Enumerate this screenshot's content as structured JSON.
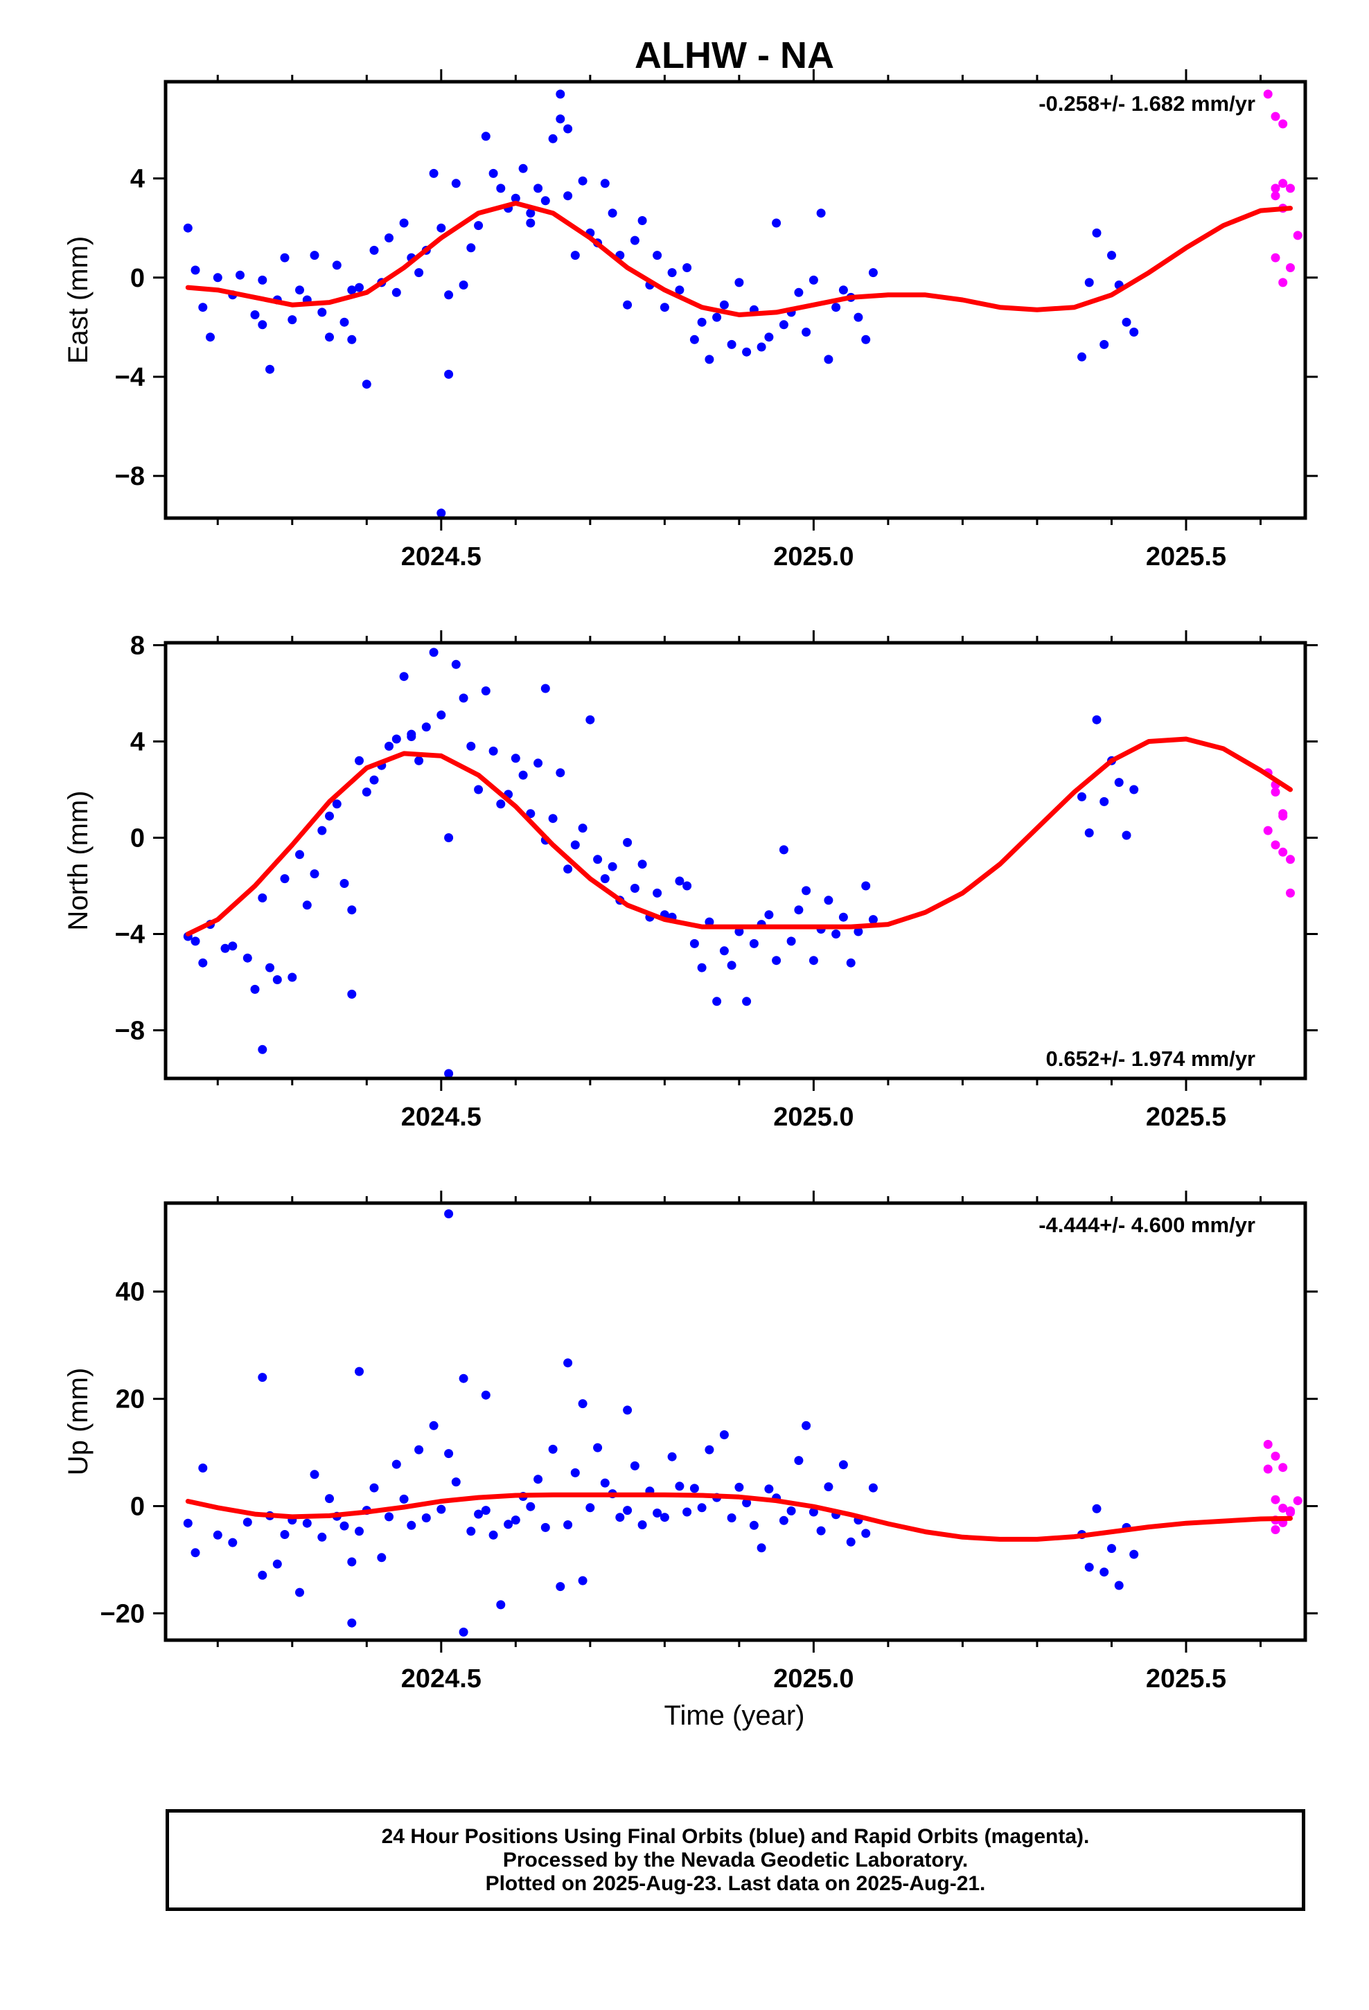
{
  "title": "ALHW - NA",
  "xlabel": "Time (year)",
  "colors": {
    "final": "#0000ff",
    "rapid": "#ff00ff",
    "model": "#ff0000",
    "axis": "#000000"
  },
  "caption": [
    "24 Hour Positions Using Final Orbits (blue) and Rapid Orbits (magenta).",
    "Processed by the Nevada Geodetic Laboratory.",
    "Plotted on 2025-Aug-23. Last data on 2025-Aug-21."
  ],
  "chart_data": [
    {
      "type": "scatter",
      "ylabel": "East (mm)",
      "rate_label": "-0.258+/- 1.682 mm/yr",
      "rate_position": "top-right",
      "xlim": [
        2024.13,
        2025.66
      ],
      "ylim": [
        -9.7,
        7.9
      ],
      "xticks": [
        2024.5,
        2025.0,
        2025.5
      ],
      "xtick_labels": [
        "2024.5",
        "2025.0",
        "2025.5"
      ],
      "yticks": [
        4,
        0,
        -4,
        -8
      ],
      "ytick_labels": [
        "4",
        "0",
        "−4",
        "−8"
      ],
      "series": [
        {
          "kind": "final",
          "x": [
            2024.16,
            2024.17,
            2024.18,
            2024.19,
            2024.2,
            2024.22,
            2024.23,
            2024.25,
            2024.26,
            2024.27,
            2024.28,
            2024.29,
            2024.3,
            2024.31,
            2024.32,
            2024.33,
            2024.34,
            2024.35,
            2024.36,
            2024.37,
            2024.38,
            2024.39,
            2024.4,
            2024.41,
            2024.42,
            2024.43,
            2024.44,
            2024.45,
            2024.46,
            2024.47,
            2024.48,
            2024.49,
            2024.5,
            2024.51,
            2024.52,
            2024.53,
            2024.54,
            2024.55,
            2024.56,
            2024.57,
            2024.58,
            2024.59,
            2024.6,
            2024.61,
            2024.62,
            2024.63,
            2024.64,
            2024.65,
            2024.66,
            2024.67,
            2024.68,
            2024.69,
            2024.7,
            2024.71,
            2024.72,
            2024.73,
            2024.74,
            2024.75,
            2024.76,
            2024.77,
            2024.78,
            2024.79,
            2024.8,
            2024.81,
            2024.82,
            2024.83,
            2024.84,
            2024.85,
            2024.86,
            2024.87,
            2024.88,
            2024.89,
            2024.9,
            2024.91,
            2024.92,
            2024.93,
            2024.94,
            2024.95,
            2024.96,
            2024.97,
            2024.98,
            2024.99,
            2025.0,
            2025.01,
            2025.02,
            2025.03,
            2025.04,
            2025.05,
            2025.06,
            2025.07,
            2025.08,
            2025.36,
            2025.37,
            2025.38,
            2025.39,
            2025.4,
            2025.41,
            2025.42,
            2025.43,
            2024.26,
            2024.38,
            2024.5,
            2024.51,
            2024.66,
            2024.67,
            2024.62
          ],
          "y": [
            2.0,
            0.3,
            -1.2,
            -2.4,
            0.0,
            -0.7,
            0.1,
            -1.5,
            -1.9,
            -3.7,
            -0.9,
            0.8,
            -1.7,
            -0.5,
            -0.9,
            0.9,
            -1.4,
            -2.4,
            0.5,
            -1.8,
            -2.5,
            -0.4,
            -4.3,
            1.1,
            -0.2,
            1.6,
            -0.6,
            2.2,
            0.8,
            0.2,
            1.1,
            4.2,
            2.0,
            -3.9,
            3.8,
            -0.3,
            1.2,
            2.1,
            5.7,
            4.2,
            3.6,
            2.8,
            3.2,
            4.4,
            2.2,
            3.6,
            3.1,
            5.6,
            6.4,
            3.3,
            0.9,
            3.9,
            1.8,
            1.4,
            3.8,
            2.6,
            0.9,
            -1.1,
            1.5,
            2.3,
            -0.3,
            0.9,
            -1.2,
            0.2,
            -0.5,
            0.4,
            -2.5,
            -1.8,
            -3.3,
            -1.6,
            -1.1,
            -2.7,
            -0.2,
            -3.0,
            -1.3,
            -2.8,
            -2.4,
            2.2,
            -1.9,
            -1.4,
            -0.6,
            -2.2,
            -0.1,
            2.6,
            -3.3,
            -1.2,
            -0.5,
            -0.8,
            -1.6,
            -2.5,
            0.2,
            -3.2,
            -0.2,
            1.8,
            -2.7,
            0.9,
            -0.3,
            -1.8,
            -2.2,
            -0.1,
            -0.5,
            -9.5,
            -0.7,
            7.4,
            6.0,
            2.6
          ],
          "color": "#0000ff"
        },
        {
          "kind": "rapid",
          "x": [
            2025.61,
            2025.62,
            2025.63,
            2025.63,
            2025.64,
            2025.62,
            2025.63,
            2025.65,
            2025.62,
            2025.64,
            2025.63,
            2025.62
          ],
          "y": [
            7.4,
            6.5,
            6.2,
            3.8,
            3.6,
            3.3,
            2.8,
            1.7,
            0.8,
            0.4,
            -0.2,
            3.6
          ],
          "color": "#ff00ff"
        }
      ],
      "model": {
        "x": [
          2024.16,
          2024.2,
          2024.25,
          2024.3,
          2024.35,
          2024.4,
          2024.45,
          2024.5,
          2024.55,
          2024.6,
          2024.65,
          2024.7,
          2024.75,
          2024.8,
          2024.85,
          2024.9,
          2024.95,
          2025.0,
          2025.05,
          2025.1,
          2025.15,
          2025.2,
          2025.25,
          2025.3,
          2025.35,
          2025.4,
          2025.45,
          2025.5,
          2025.55,
          2025.6,
          2025.64
        ],
        "y": [
          -0.4,
          -0.5,
          -0.8,
          -1.1,
          -1.0,
          -0.6,
          0.4,
          1.6,
          2.6,
          3.0,
          2.6,
          1.6,
          0.4,
          -0.5,
          -1.2,
          -1.5,
          -1.4,
          -1.1,
          -0.8,
          -0.7,
          -0.7,
          -0.9,
          -1.2,
          -1.3,
          -1.2,
          -0.7,
          0.2,
          1.2,
          2.1,
          2.7,
          2.8
        ]
      }
    },
    {
      "type": "scatter",
      "ylabel": "North (mm)",
      "rate_label": "0.652+/- 1.974 mm/yr",
      "rate_position": "bottom-right",
      "xlim": [
        2024.13,
        2025.66
      ],
      "ylim": [
        -10.0,
        8.1
      ],
      "xticks": [
        2024.5,
        2025.0,
        2025.5
      ],
      "xtick_labels": [
        "2024.5",
        "2025.0",
        "2025.5"
      ],
      "yticks": [
        8,
        4,
        0,
        -4,
        -8
      ],
      "ytick_labels": [
        "8",
        "4",
        "0",
        "−4",
        "−8"
      ],
      "series": [
        {
          "kind": "final",
          "x": [
            2024.16,
            2024.17,
            2024.18,
            2024.19,
            2024.21,
            2024.22,
            2024.24,
            2024.25,
            2024.26,
            2024.27,
            2024.28,
            2024.29,
            2024.3,
            2024.31,
            2024.32,
            2024.33,
            2024.34,
            2024.35,
            2024.36,
            2024.37,
            2024.38,
            2024.39,
            2024.4,
            2024.41,
            2024.42,
            2024.43,
            2024.44,
            2024.45,
            2024.46,
            2024.47,
            2024.48,
            2024.49,
            2024.5,
            2024.51,
            2024.52,
            2024.53,
            2024.54,
            2024.55,
            2024.56,
            2024.57,
            2024.58,
            2024.59,
            2024.6,
            2024.61,
            2024.62,
            2024.63,
            2024.64,
            2024.65,
            2024.66,
            2024.67,
            2024.68,
            2024.69,
            2024.7,
            2024.71,
            2024.72,
            2024.73,
            2024.74,
            2024.75,
            2024.76,
            2024.77,
            2024.78,
            2024.79,
            2024.8,
            2024.81,
            2024.82,
            2024.83,
            2024.84,
            2024.85,
            2024.86,
            2024.87,
            2024.88,
            2024.89,
            2024.9,
            2024.91,
            2024.92,
            2024.93,
            2024.94,
            2024.95,
            2024.96,
            2024.97,
            2024.98,
            2024.99,
            2025.0,
            2025.01,
            2025.02,
            2025.03,
            2025.04,
            2025.05,
            2025.06,
            2025.07,
            2025.08,
            2025.36,
            2025.37,
            2025.38,
            2025.39,
            2025.4,
            2025.41,
            2025.42,
            2025.43,
            2024.26,
            2024.38,
            2024.51,
            2024.46,
            2024.64
          ],
          "y": [
            -4.1,
            -4.3,
            -5.2,
            -3.6,
            -4.6,
            -4.5,
            -5.0,
            -6.3,
            -2.5,
            -5.4,
            -5.9,
            -1.7,
            -5.8,
            -0.7,
            -2.8,
            -1.5,
            0.3,
            0.9,
            1.4,
            -1.9,
            -6.5,
            3.2,
            1.9,
            2.4,
            3.0,
            3.8,
            4.1,
            6.7,
            4.3,
            3.2,
            4.6,
            7.7,
            5.1,
            0.0,
            7.2,
            5.8,
            3.8,
            2.0,
            6.1,
            3.6,
            1.4,
            1.8,
            3.3,
            2.6,
            1.0,
            3.1,
            -0.1,
            0.8,
            2.7,
            -1.3,
            -0.3,
            0.4,
            4.9,
            -0.9,
            -1.7,
            -1.2,
            -2.6,
            -0.2,
            -2.1,
            -1.1,
            -3.3,
            -2.3,
            -3.2,
            -3.3,
            -1.8,
            -2.0,
            -4.4,
            -5.4,
            -3.5,
            -6.8,
            -4.7,
            -5.3,
            -3.9,
            -6.8,
            -4.4,
            -3.6,
            -3.2,
            -5.1,
            -0.5,
            -4.3,
            -3.0,
            -2.2,
            -5.1,
            -3.8,
            -2.6,
            -4.0,
            -3.3,
            -5.2,
            -3.9,
            -2.0,
            -3.4,
            1.7,
            0.2,
            4.9,
            1.5,
            3.2,
            2.3,
            0.1,
            2.0,
            -8.8,
            -3.0,
            -9.8,
            4.2,
            6.2
          ],
          "color": "#0000ff"
        },
        {
          "kind": "rapid",
          "x": [
            2025.61,
            2025.62,
            2025.63,
            2025.61,
            2025.62,
            2025.63,
            2025.64,
            2025.62,
            2025.63,
            2025.64
          ],
          "y": [
            2.7,
            1.9,
            1.0,
            0.3,
            -0.3,
            -0.6,
            -0.9,
            2.2,
            0.9,
            -2.3
          ],
          "color": "#ff00ff"
        }
      ],
      "model": {
        "x": [
          2024.16,
          2024.2,
          2024.25,
          2024.3,
          2024.35,
          2024.4,
          2024.45,
          2024.5,
          2024.55,
          2024.6,
          2024.65,
          2024.7,
          2024.75,
          2024.8,
          2024.85,
          2024.9,
          2024.95,
          2025.0,
          2025.05,
          2025.1,
          2025.15,
          2025.2,
          2025.25,
          2025.3,
          2025.35,
          2025.4,
          2025.45,
          2025.5,
          2025.55,
          2025.6,
          2025.64
        ],
        "y": [
          -4.0,
          -3.4,
          -2.0,
          -0.3,
          1.5,
          2.9,
          3.5,
          3.4,
          2.6,
          1.3,
          -0.3,
          -1.7,
          -2.8,
          -3.4,
          -3.7,
          -3.7,
          -3.7,
          -3.7,
          -3.7,
          -3.6,
          -3.1,
          -2.3,
          -1.1,
          0.4,
          1.9,
          3.2,
          4.0,
          4.1,
          3.7,
          2.8,
          2.0
        ]
      }
    },
    {
      "type": "scatter",
      "ylabel": "Up (mm)",
      "rate_label": "-4.444+/- 4.600 mm/yr",
      "rate_position": "top-right",
      "xlim": [
        2024.13,
        2025.66
      ],
      "ylim": [
        -25.0,
        56.5
      ],
      "xticks": [
        2024.5,
        2025.0,
        2025.5
      ],
      "xtick_labels": [
        "2024.5",
        "2025.0",
        "2025.5"
      ],
      "yticks": [
        40,
        20,
        0,
        -20
      ],
      "ytick_labels": [
        "40",
        "20",
        "0",
        "−20"
      ],
      "series": [
        {
          "kind": "final",
          "x": [
            2024.16,
            2024.17,
            2024.18,
            2024.2,
            2024.22,
            2024.24,
            2024.26,
            2024.27,
            2024.28,
            2024.29,
            2024.3,
            2024.31,
            2024.32,
            2024.33,
            2024.34,
            2024.35,
            2024.36,
            2024.37,
            2024.38,
            2024.39,
            2024.4,
            2024.41,
            2024.42,
            2024.43,
            2024.44,
            2024.45,
            2024.46,
            2024.47,
            2024.48,
            2024.49,
            2024.5,
            2024.51,
            2024.52,
            2024.53,
            2024.54,
            2024.55,
            2024.56,
            2024.57,
            2024.58,
            2024.59,
            2024.6,
            2024.61,
            2024.62,
            2024.63,
            2024.64,
            2024.65,
            2024.66,
            2024.67,
            2024.68,
            2024.69,
            2024.7,
            2024.71,
            2024.72,
            2024.73,
            2024.74,
            2024.75,
            2024.76,
            2024.77,
            2024.78,
            2024.79,
            2024.8,
            2024.81,
            2024.82,
            2024.83,
            2024.84,
            2024.85,
            2024.86,
            2024.87,
            2024.88,
            2024.89,
            2024.9,
            2024.91,
            2024.92,
            2024.93,
            2024.94,
            2024.95,
            2024.96,
            2024.97,
            2024.98,
            2024.99,
            2025.0,
            2025.01,
            2025.02,
            2025.03,
            2025.04,
            2025.05,
            2025.06,
            2025.07,
            2025.08,
            2025.36,
            2025.37,
            2025.38,
            2025.39,
            2025.4,
            2025.41,
            2025.42,
            2025.43,
            2024.26,
            2024.39,
            2024.51,
            2024.53,
            2024.67,
            2024.69,
            2024.75,
            2024.38,
            2024.56
          ],
          "y": [
            -3.2,
            -8.7,
            7.1,
            -5.4,
            -6.8,
            -3.0,
            -12.9,
            -1.8,
            -10.8,
            -5.3,
            -2.6,
            -16.1,
            -3.2,
            5.9,
            -5.8,
            1.4,
            -1.9,
            -3.7,
            -10.4,
            -4.7,
            -0.8,
            3.4,
            -9.6,
            -2.0,
            7.8,
            1.3,
            -3.6,
            10.5,
            -2.2,
            15.0,
            -0.6,
            9.8,
            4.5,
            23.8,
            -4.7,
            -1.5,
            -0.8,
            -5.4,
            -18.4,
            -3.4,
            -2.6,
            1.8,
            -0.1,
            5.0,
            -4.0,
            10.6,
            -15.0,
            -3.5,
            6.2,
            -13.9,
            -0.3,
            10.9,
            4.3,
            2.3,
            -2.1,
            -0.8,
            7.5,
            -3.5,
            2.8,
            -1.3,
            -2.1,
            9.2,
            3.7,
            -1.1,
            3.3,
            -0.3,
            10.5,
            1.6,
            13.3,
            -2.2,
            3.5,
            0.6,
            -3.6,
            -7.8,
            3.2,
            1.5,
            -2.7,
            -0.9,
            8.5,
            15.0,
            -1.1,
            -4.6,
            3.6,
            -1.6,
            7.7,
            -6.7,
            -2.6,
            -5.1,
            3.4,
            -5.3,
            -11.4,
            -0.5,
            -12.3,
            -7.9,
            -14.8,
            -4.0,
            -9.0,
            24.0,
            25.1,
            54.5,
            -23.5,
            26.7,
            19.1,
            17.9,
            -21.8,
            20.7
          ],
          "color": "#0000ff"
        },
        {
          "kind": "rapid",
          "x": [
            2025.61,
            2025.62,
            2025.63,
            2025.61,
            2025.62,
            2025.63,
            2025.64,
            2025.62,
            2025.63,
            2025.64,
            2025.65,
            2025.62
          ],
          "y": [
            11.5,
            9.3,
            7.2,
            6.9,
            1.2,
            -0.4,
            -1.2,
            -2.6,
            -3.1,
            -0.9,
            1.0,
            -4.4
          ],
          "color": "#ff00ff"
        }
      ],
      "model": {
        "x": [
          2024.16,
          2024.2,
          2024.25,
          2024.3,
          2024.35,
          2024.4,
          2024.45,
          2024.5,
          2024.55,
          2024.6,
          2024.65,
          2024.7,
          2024.75,
          2024.8,
          2024.85,
          2024.9,
          2024.95,
          2025.0,
          2025.05,
          2025.1,
          2025.15,
          2025.2,
          2025.25,
          2025.3,
          2025.35,
          2025.4,
          2025.45,
          2025.5,
          2025.55,
          2025.6,
          2025.64
        ],
        "y": [
          0.9,
          -0.3,
          -1.5,
          -2.0,
          -1.8,
          -1.1,
          -0.2,
          0.9,
          1.6,
          2.0,
          2.1,
          2.1,
          2.1,
          2.1,
          2.0,
          1.7,
          1.0,
          -0.1,
          -1.6,
          -3.3,
          -4.8,
          -5.8,
          -6.2,
          -6.2,
          -5.7,
          -4.8,
          -3.9,
          -3.2,
          -2.8,
          -2.4,
          -2.3
        ]
      }
    }
  ]
}
